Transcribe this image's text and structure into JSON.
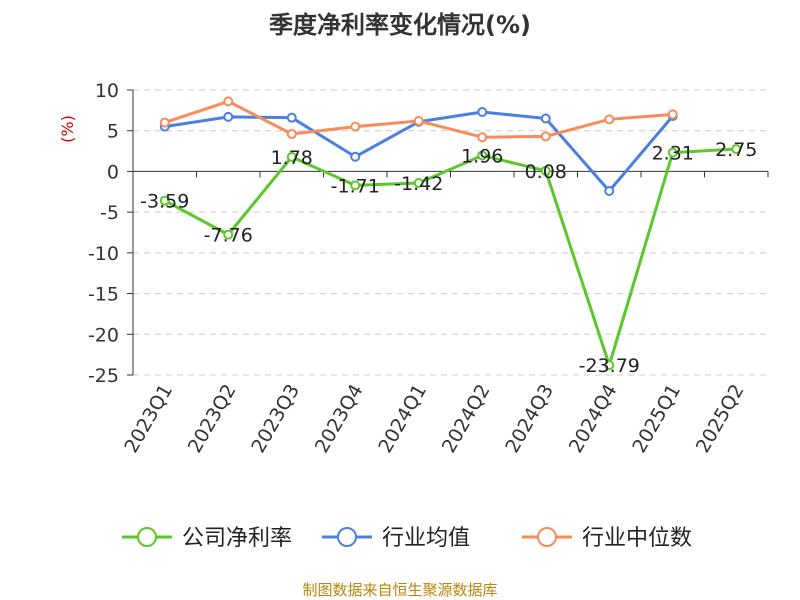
{
  "chart_data": {
    "type": "line",
    "title": "季度净利率变化情况(%)",
    "unit_label": "(%)",
    "categories": [
      "2023Q1",
      "2023Q2",
      "2023Q3",
      "2023Q4",
      "2024Q1",
      "2024Q2",
      "2024Q3",
      "2024Q4",
      "2025Q1",
      "2025Q2"
    ],
    "ylim": [
      -25,
      10
    ],
    "yticks": [
      10,
      5,
      0,
      -5,
      -10,
      -15,
      -20,
      -25
    ],
    "grid": true,
    "legend_position": "bottom",
    "series": [
      {
        "name": "公司净利率",
        "color": "#5cc72b",
        "values": [
          -3.59,
          -7.76,
          1.78,
          -1.71,
          -1.42,
          1.96,
          0.08,
          -23.79,
          2.31,
          2.75
        ],
        "labels": [
          "-3.59",
          "-7.76",
          "1.78",
          "-1.71",
          "-1.42",
          "1.96",
          "0.08",
          "-23.79",
          "2.31",
          "2.75"
        ]
      },
      {
        "name": "行业均值",
        "color": "#4a7fe0",
        "values": [
          5.5,
          6.7,
          6.6,
          1.8,
          6.1,
          7.3,
          6.5,
          -2.4,
          6.8,
          null
        ]
      },
      {
        "name": "行业中位数",
        "color": "#f78c5a",
        "values": [
          6.0,
          8.6,
          4.6,
          5.5,
          6.2,
          4.2,
          4.3,
          6.4,
          7.0,
          null
        ]
      }
    ],
    "source": "制图数据来自恒生聚源数据库"
  }
}
